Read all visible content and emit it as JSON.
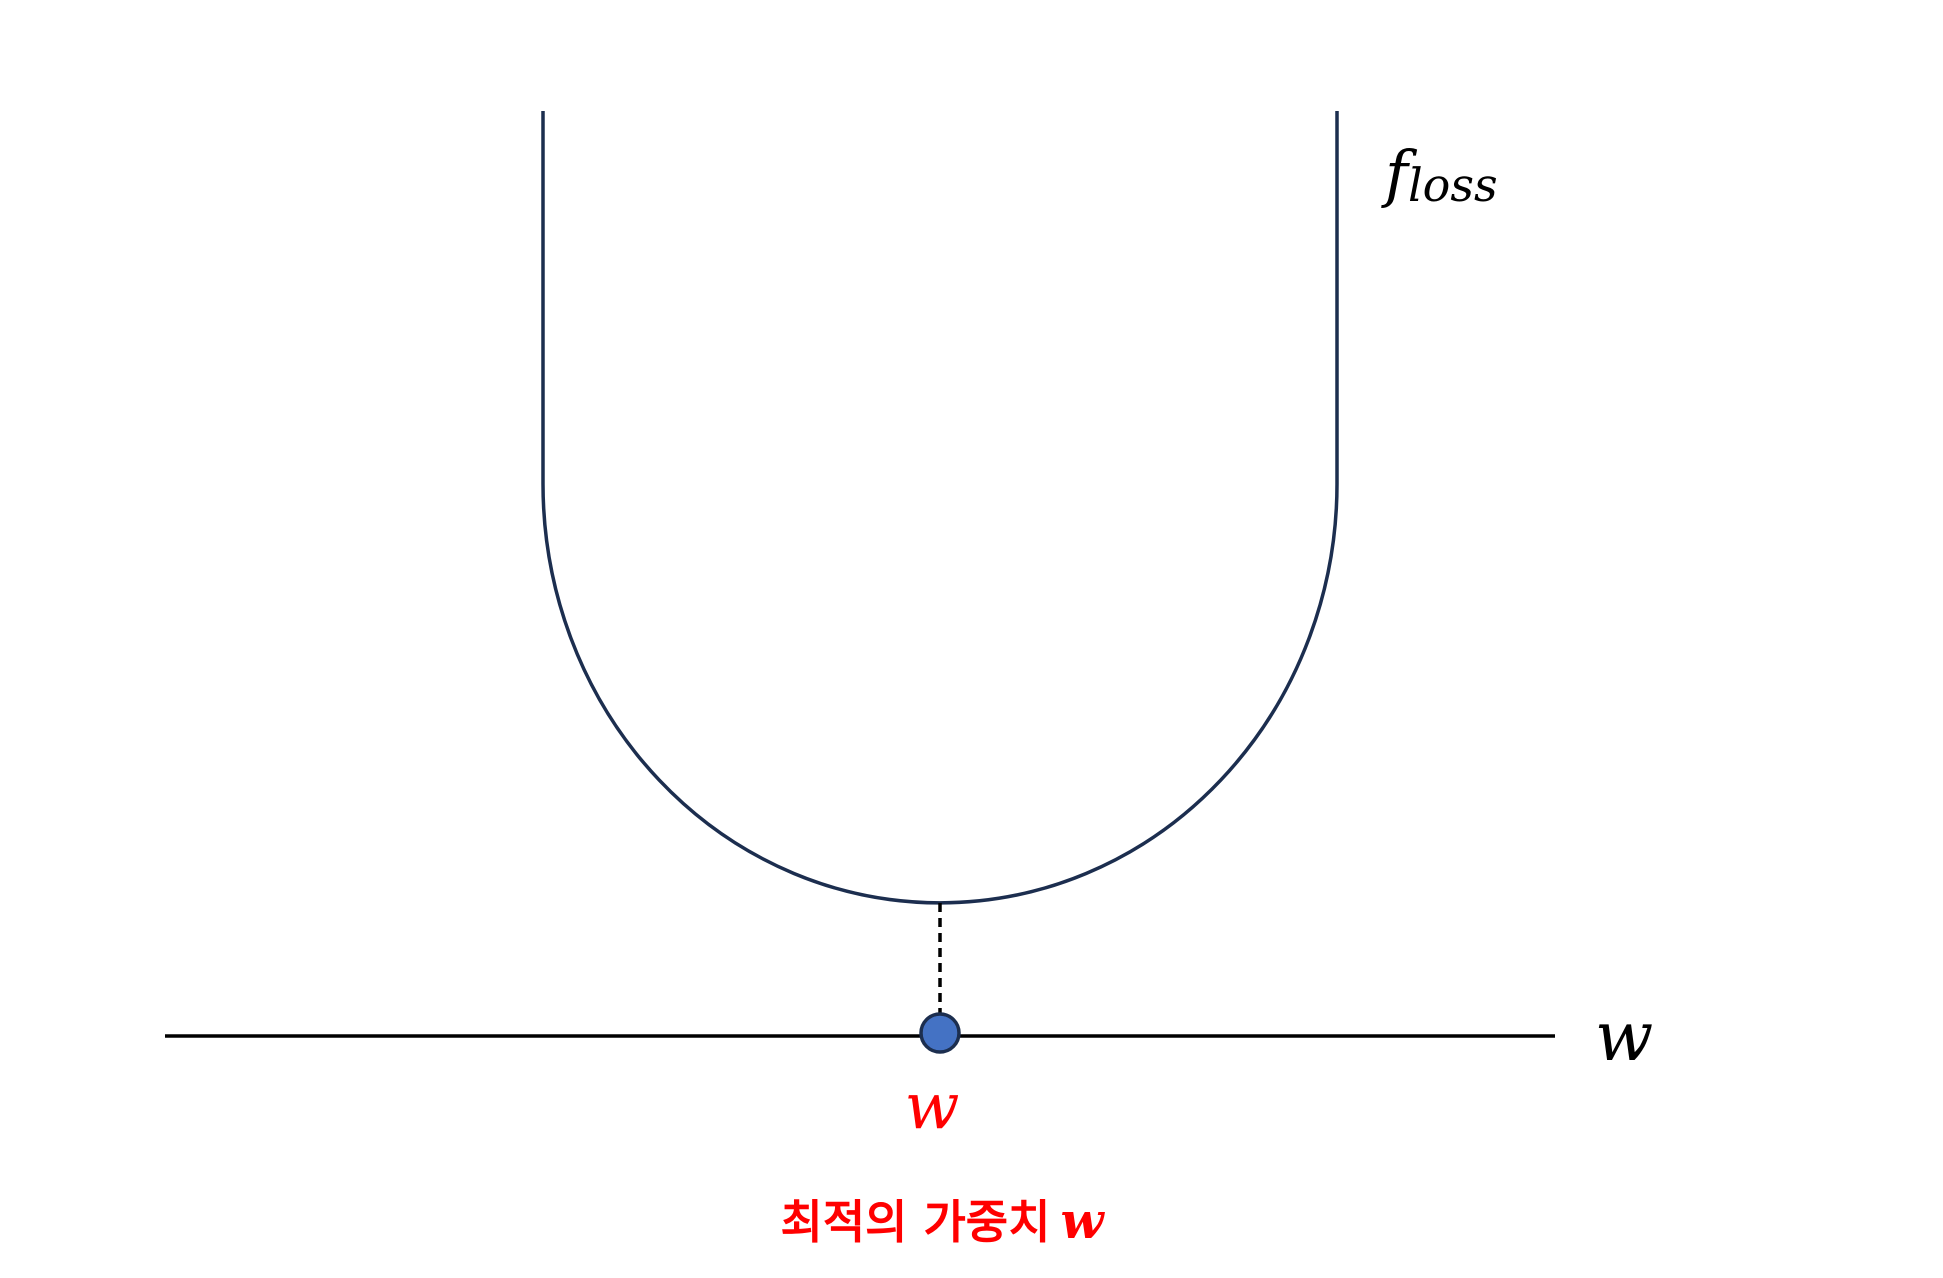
{
  "curve_label": {
    "main": "f",
    "subscript": "loss"
  },
  "axis_label": "w",
  "point_label": "w",
  "caption": {
    "text": "최적의 가중치",
    "variable": "w"
  },
  "colors": {
    "curve": "#1c2e4f",
    "axis": "#000000",
    "point_fill": "#4472c4",
    "point_stroke": "#1c2e4f",
    "highlight": "#ff0000",
    "label": "#000000"
  }
}
